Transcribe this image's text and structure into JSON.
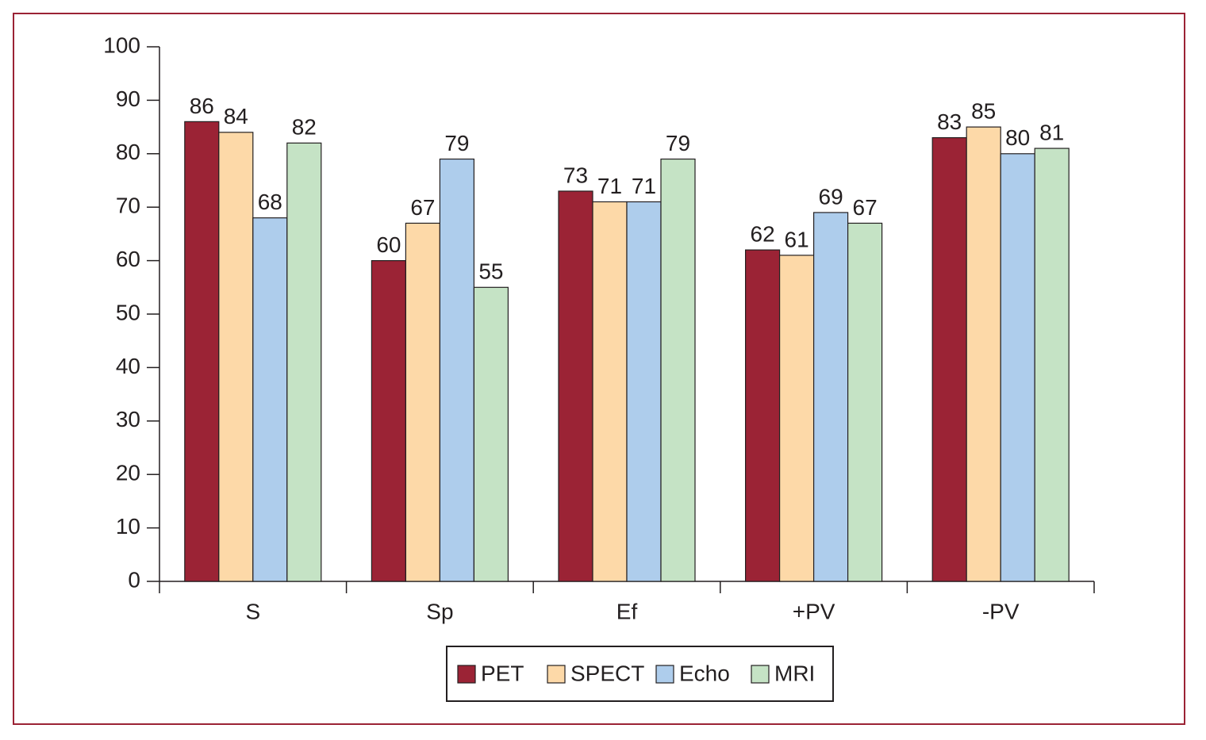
{
  "chart_data": {
    "type": "bar",
    "categories": [
      "S",
      "Sp",
      "Ef",
      "+PV",
      "-PV"
    ],
    "series": [
      {
        "name": "PET",
        "color": "#9b2335",
        "values": [
          86,
          60,
          73,
          62,
          83
        ]
      },
      {
        "name": "SPECT",
        "color": "#fdd9a8",
        "values": [
          84,
          67,
          71,
          61,
          85
        ]
      },
      {
        "name": "Echo",
        "color": "#aecdec",
        "values": [
          68,
          79,
          71,
          69,
          80
        ]
      },
      {
        "name": "MRI",
        "color": "#c5e3c5",
        "values": [
          82,
          55,
          79,
          67,
          81
        ]
      }
    ],
    "ylim": [
      0,
      100
    ],
    "yticks": [
      0,
      10,
      20,
      30,
      40,
      50,
      60,
      70,
      80,
      90,
      100
    ]
  }
}
